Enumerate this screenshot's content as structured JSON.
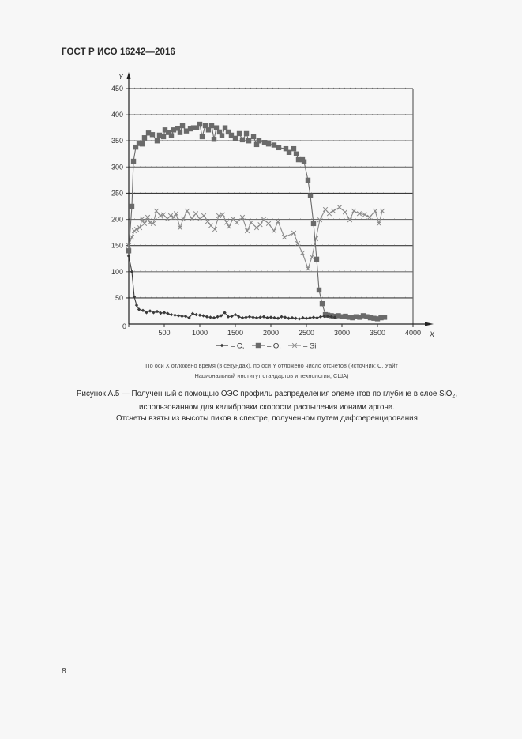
{
  "header": {
    "standard": "ГОСТ Р ИСО 16242—2016"
  },
  "figure": {
    "note_lines": [
      "По оси X отложено время (в секундах), по оси Y отложено число отсчетов (источник: С. Уайт",
      "Национальный институт стандартов и технологии, США)"
    ],
    "caption": {
      "line1_text": "Рисунок А.5 — Полученный с помощью ОЭС профиль распределения элементов по глубине в слое SiO",
      "line1_sub": "2",
      "line1_tail": ",",
      "line2": "использованном для калибровки скорости распыления ионами аргона.",
      "line3": "Отсчеты взяты из высоты пиков в спектре, полученном путем дифференцирования"
    }
  },
  "page": {
    "number": "8"
  },
  "chart_data": {
    "type": "line",
    "title": "",
    "xlabel": "X",
    "ylabel": "Y",
    "xlim": [
      0,
      4000
    ],
    "ylim": [
      0,
      450
    ],
    "x_ticks": [
      0,
      500,
      1000,
      1500,
      2000,
      2500,
      3000,
      3500,
      4000
    ],
    "x_tick_labels": [
      "",
      "500",
      "1000",
      "1500",
      "2000",
      "2500",
      "3000",
      "3500",
      "4000"
    ],
    "y_ticks": [
      0,
      50,
      100,
      150,
      200,
      250,
      300,
      350,
      400,
      450
    ],
    "y_tick_labels": [
      "0",
      "50",
      "100",
      "150",
      "200",
      "250",
      "300",
      "350",
      "400",
      "450"
    ],
    "grid": true,
    "legend_position": "bottom",
    "legend": [
      {
        "label": "– C,",
        "marker": "diamond",
        "color": "#3a3a3a"
      },
      {
        "label": "– O,",
        "marker": "square",
        "color": "#6a6a6a"
      },
      {
        "label": "– Si",
        "marker": "x",
        "color": "#8a8a8a"
      }
    ],
    "series": [
      {
        "name": "C",
        "marker": "diamond",
        "color": "#3a3a3a",
        "x": [
          0,
          44,
          78,
          111,
          145,
          200,
          250,
          300,
          350,
          400,
          450,
          500,
          550,
          600,
          650,
          700,
          750,
          800,
          850,
          900,
          950,
          1000,
          1050,
          1100,
          1150,
          1200,
          1250,
          1300,
          1350,
          1400,
          1450,
          1500,
          1550,
          1600,
          1650,
          1700,
          1750,
          1800,
          1850,
          1900,
          1950,
          2000,
          2050,
          2100,
          2150,
          2200,
          2250,
          2300,
          2350,
          2400,
          2450,
          2500,
          2550,
          2600,
          2650,
          2700,
          2750,
          2800,
          2850,
          2900
        ],
        "values": [
          130,
          100,
          52,
          36,
          28,
          26,
          22,
          25,
          22,
          24,
          21,
          22,
          20,
          18,
          17,
          16,
          15,
          15,
          12,
          20,
          18,
          17,
          16,
          14,
          13,
          12,
          14,
          16,
          22,
          14,
          15,
          18,
          14,
          12,
          13,
          14,
          13,
          12,
          13,
          14,
          12,
          13,
          12,
          11,
          14,
          13,
          11,
          12,
          11,
          10,
          12,
          11,
          12,
          13,
          12,
          14,
          15,
          15,
          14,
          13
        ]
      },
      {
        "name": "O",
        "marker": "square",
        "color": "#6a6a6a",
        "x": [
          0,
          44,
          67,
          100,
          145,
          189,
          222,
          278,
          333,
          400,
          433,
          489,
          511,
          556,
          600,
          633,
          689,
          722,
          756,
          811,
          867,
          911,
          956,
          1000,
          1033,
          1078,
          1122,
          1167,
          1200,
          1233,
          1278,
          1311,
          1356,
          1400,
          1444,
          1500,
          1556,
          1600,
          1656,
          1689,
          1756,
          1800,
          1833,
          1911,
          1967,
          2044,
          2111,
          2211,
          2256,
          2322,
          2356,
          2389,
          2444,
          2467,
          2522,
          2556,
          2600,
          2644,
          2678,
          2722,
          2767,
          2800,
          2850,
          2900,
          2950,
          3000,
          3050,
          3100,
          3150,
          3200,
          3250,
          3300,
          3350,
          3400,
          3450,
          3500,
          3550,
          3600
        ],
        "values": [
          140,
          225,
          311,
          338,
          345,
          344,
          356,
          365,
          362,
          350,
          361,
          358,
          371,
          366,
          360,
          371,
          374,
          366,
          379,
          369,
          373,
          375,
          375,
          382,
          358,
          379,
          371,
          379,
          353,
          375,
          367,
          360,
          375,
          367,
          361,
          355,
          364,
          352,
          364,
          350,
          358,
          343,
          350,
          347,
          344,
          342,
          337,
          335,
          328,
          335,
          325,
          314,
          314,
          310,
          275,
          245,
          192,
          124,
          65,
          39,
          18,
          17,
          16,
          15,
          16,
          14,
          15,
          13,
          12,
          14,
          13,
          16,
          14,
          12,
          11,
          10,
          12,
          13
        ]
      },
      {
        "name": "Si",
        "marker": "x",
        "color": "#8a8a8a",
        "x": [
          0,
          44,
          78,
          111,
          156,
          189,
          222,
          267,
          300,
          344,
          389,
          444,
          489,
          544,
          589,
          633,
          667,
          722,
          767,
          822,
          889,
          944,
          1000,
          1056,
          1111,
          1156,
          1211,
          1267,
          1322,
          1378,
          1411,
          1467,
          1522,
          1600,
          1667,
          1722,
          1800,
          1850,
          1900,
          1967,
          2044,
          2100,
          2189,
          2322,
          2378,
          2444,
          2522,
          2578,
          2633,
          2689,
          2767,
          2822,
          2878,
          2967,
          3044,
          3111,
          3167,
          3244,
          3322,
          3389,
          3467,
          3522,
          3567
        ],
        "values": [
          150,
          166,
          178,
          181,
          184,
          201,
          192,
          204,
          194,
          192,
          216,
          207,
          209,
          201,
          207,
          204,
          211,
          184,
          201,
          216,
          201,
          211,
          201,
          207,
          196,
          188,
          181,
          207,
          209,
          194,
          186,
          201,
          194,
          204,
          178,
          194,
          184,
          190,
          200,
          192,
          178,
          196,
          166,
          174,
          154,
          136,
          106,
          128,
          163,
          199,
          219,
          211,
          216,
          223,
          214,
          199,
          216,
          211,
          209,
          204,
          216,
          192,
          216
        ]
      }
    ]
  }
}
